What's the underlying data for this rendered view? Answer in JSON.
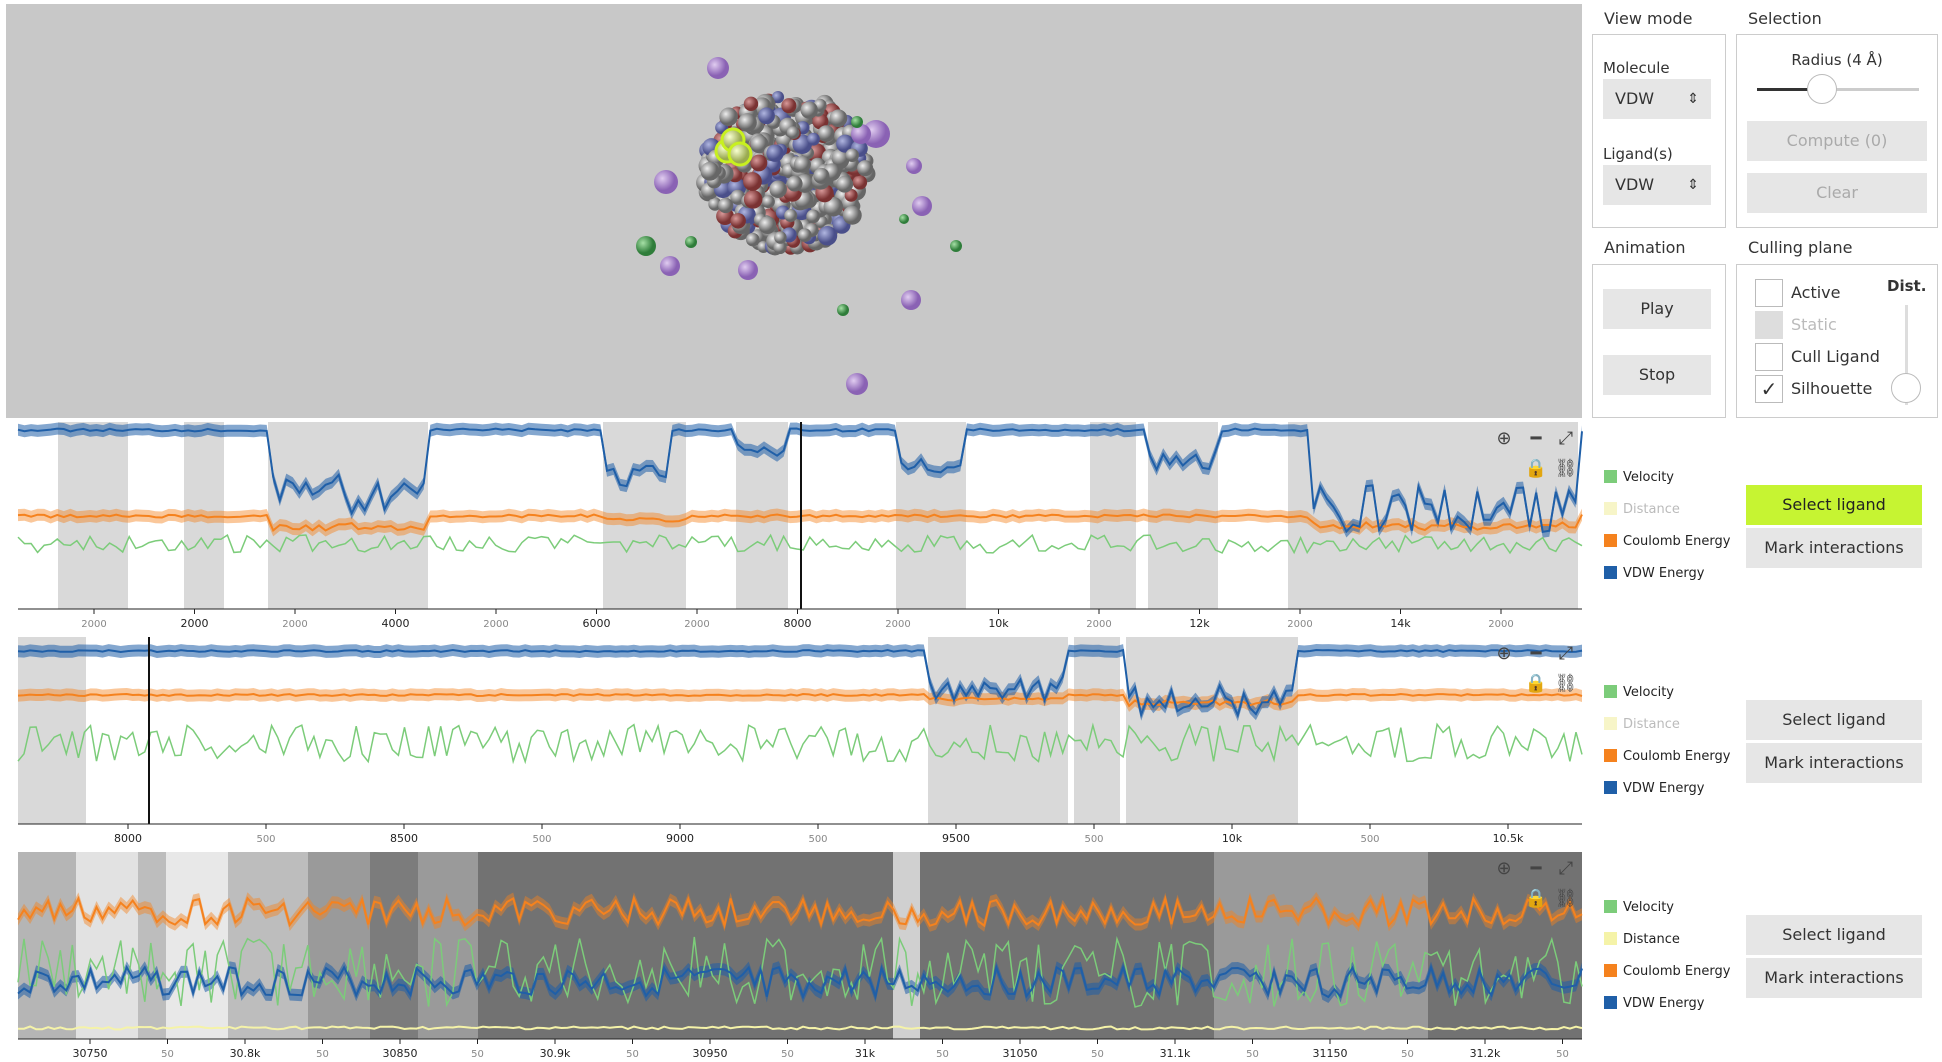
{
  "view_mode": {
    "heading": "View mode",
    "molecule_label": "Molecule",
    "molecule_value": "VDW",
    "ligand_label": "Ligand(s)",
    "ligand_value": "VDW"
  },
  "selection": {
    "heading": "Selection",
    "radius_label": "Radius (4 Å)",
    "radius_fraction": 0.4,
    "compute_label": "Compute (0)",
    "clear_label": "Clear"
  },
  "animation": {
    "heading": "Animation",
    "play_label": "Play",
    "stop_label": "Stop"
  },
  "culling": {
    "heading": "Culling plane",
    "dist_label": "Dist.",
    "options": [
      {
        "label": "Active",
        "checked": false,
        "disabled": false
      },
      {
        "label": "Static",
        "checked": false,
        "disabled": true
      },
      {
        "label": "Cull Ligand",
        "checked": false,
        "disabled": false
      },
      {
        "label": "Silhouette",
        "checked": true,
        "disabled": false
      }
    ],
    "checkmark": "✓"
  },
  "colors": {
    "velocity": "#7ccc7a",
    "distance": "#f5f3a8",
    "coulomb": "#f5821e",
    "vdw": "#1f5fa8",
    "highlight": "#c6f432"
  },
  "icons": [
    "zoom-reset-icon",
    "minus-icon",
    "fullscreen-icon",
    "lock-icon",
    "link-icon"
  ],
  "panels": [
    {
      "legend": [
        {
          "label": "Velocity",
          "color": "#7ccc7a",
          "dim": false
        },
        {
          "label": "Distance",
          "color": "#f7f5c8",
          "dim": true
        },
        {
          "label": "Coulomb Energy",
          "color": "#f5821e",
          "dim": false
        },
        {
          "label": "VDW Energy",
          "color": "#1f5fa8",
          "dim": false
        }
      ],
      "select_label": "Select ligand",
      "select_highlight": true,
      "mark_label": "Mark interactions",
      "ticks": [
        "2000",
        "2000",
        "2000",
        "4000",
        "2000",
        "6000",
        "2000",
        "8000",
        "2000",
        "10k",
        "2000",
        "12k",
        "2000",
        "14k",
        "2000"
      ],
      "minor": [
        true,
        false,
        true,
        false,
        true,
        false,
        true,
        false,
        true,
        false,
        true,
        false,
        true,
        false,
        true
      ]
    },
    {
      "legend": [
        {
          "label": "Velocity",
          "color": "#7ccc7a",
          "dim": false
        },
        {
          "label": "Distance",
          "color": "#f7f5c8",
          "dim": true
        },
        {
          "label": "Coulomb Energy",
          "color": "#f5821e",
          "dim": false
        },
        {
          "label": "VDW Energy",
          "color": "#1f5fa8",
          "dim": false
        }
      ],
      "select_label": "Select ligand",
      "select_highlight": false,
      "mark_label": "Mark interactions",
      "ticks": [
        "8000",
        "500",
        "8500",
        "500",
        "9000",
        "500",
        "9500",
        "500",
        "10k",
        "500",
        "10.5k"
      ],
      "minor": [
        false,
        true,
        false,
        true,
        false,
        true,
        false,
        true,
        false,
        true,
        false
      ]
    },
    {
      "legend": [
        {
          "label": "Velocity",
          "color": "#7ccc7a",
          "dim": false
        },
        {
          "label": "Distance",
          "color": "#f5f3a8",
          "dim": false
        },
        {
          "label": "Coulomb Energy",
          "color": "#f5821e",
          "dim": false
        },
        {
          "label": "VDW Energy",
          "color": "#1f5fa8",
          "dim": false
        }
      ],
      "select_label": "Select ligand",
      "select_highlight": false,
      "mark_label": "Mark interactions",
      "ticks": [
        "30750",
        "50",
        "30.8k",
        "50",
        "30850",
        "50",
        "30.9k",
        "50",
        "30950",
        "50",
        "31k",
        "50",
        "31050",
        "50",
        "31.1k",
        "50",
        "31150",
        "50",
        "31.2k",
        "50"
      ],
      "minor": [
        false,
        true,
        false,
        true,
        false,
        true,
        false,
        true,
        false,
        true,
        false,
        true,
        false,
        true,
        false,
        true,
        false,
        true,
        false,
        true
      ]
    }
  ]
}
